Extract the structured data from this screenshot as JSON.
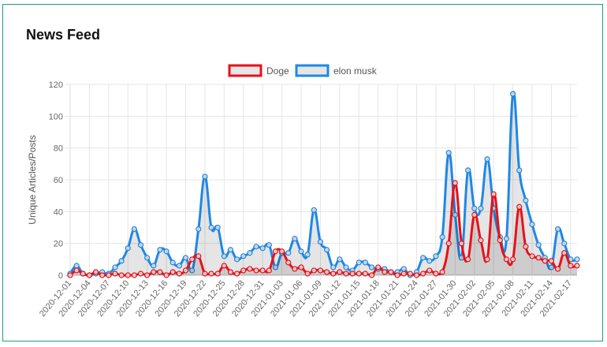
{
  "card": {
    "title": "News Feed"
  },
  "chart_data": {
    "type": "line",
    "ylabel": "Unique Articles/Posts",
    "xlabel": "",
    "ylim": [
      0,
      120
    ],
    "y_ticks": [
      0,
      20,
      40,
      60,
      80,
      100,
      120
    ],
    "grid": true,
    "legend_position": "top",
    "x_tick_labels": [
      "2020-12-01",
      "2020-12-04",
      "2020-12-07",
      "2020-12-10",
      "2020-12-13",
      "2020-12-16",
      "2020-12-19",
      "2020-12-22",
      "2020-12-25",
      "2020-12-28",
      "2020-12-31",
      "2021-01-03",
      "2021-01-06",
      "2021-01-09",
      "2021-01-12",
      "2021-01-15",
      "2021-01-18",
      "2021-01-21",
      "2021-01-24",
      "2021-01-27",
      "2021-01-30",
      "2021-02-02",
      "2021-02-05",
      "2021-02-08",
      "2021-02-11",
      "2021-02-14",
      "2021-02-17"
    ],
    "series": [
      {
        "name": "Doge",
        "color": "#e8101a",
        "values": [
          0,
          3,
          1,
          0,
          2,
          0,
          0,
          1,
          0,
          0,
          0,
          1,
          0,
          2,
          2,
          0,
          2,
          1,
          3,
          10,
          12,
          1,
          1,
          1,
          6,
          2,
          1,
          3,
          4,
          3,
          3,
          3,
          15,
          15,
          8,
          4,
          5,
          1,
          3,
          3,
          2,
          1,
          2,
          1,
          1,
          1,
          1,
          0,
          5,
          2,
          2,
          0,
          1,
          1,
          0,
          1,
          3,
          1,
          2,
          20,
          58,
          20,
          10,
          38,
          22,
          10,
          51,
          22,
          10,
          10,
          43,
          18,
          12,
          11,
          9,
          9,
          4,
          14,
          6,
          6
        ]
      },
      {
        "name": "elon musk",
        "color": "#1e88e5",
        "values": [
          1,
          6,
          1,
          0,
          1,
          2,
          1,
          5,
          9,
          17,
          29,
          19,
          11,
          6,
          16,
          15,
          8,
          6,
          11,
          3,
          29,
          62,
          30,
          30,
          12,
          16,
          10,
          12,
          14,
          18,
          17,
          19,
          5,
          14,
          14,
          23,
          15,
          13,
          41,
          21,
          16,
          5,
          10,
          5,
          3,
          8,
          8,
          5,
          4,
          4,
          2,
          2,
          4,
          0,
          2,
          11,
          9,
          12,
          24,
          77,
          38,
          11,
          66,
          42,
          42,
          73,
          42,
          24,
          23,
          114,
          66,
          47,
          32,
          19,
          11,
          5,
          29,
          20,
          10,
          10
        ]
      }
    ]
  }
}
